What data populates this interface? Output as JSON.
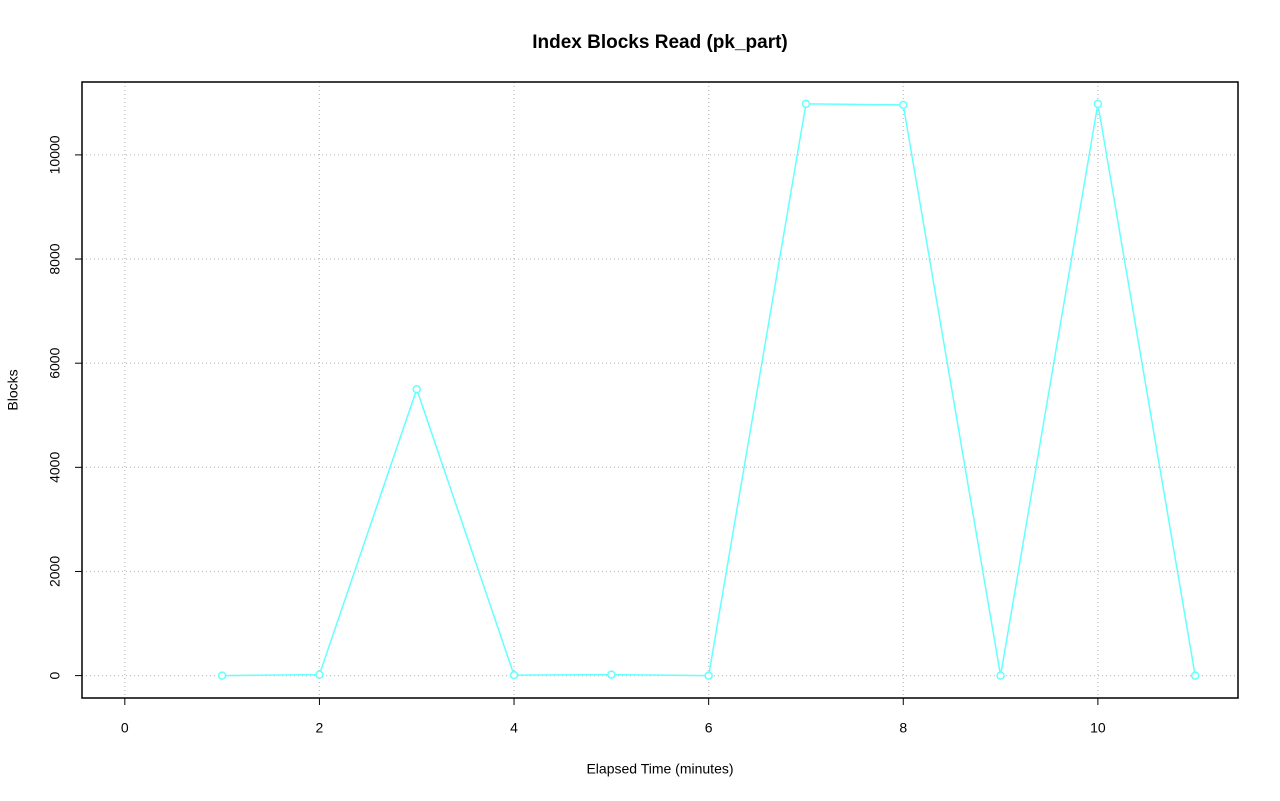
{
  "chart_data": {
    "type": "line",
    "title": "Index Blocks Read (pk_part)",
    "x_label": "Elapsed Time (minutes)",
    "y_label": "Blocks",
    "x": [
      1,
      2,
      3,
      4,
      5,
      6,
      7,
      8,
      9,
      10,
      11
    ],
    "series": [
      {
        "name": "pk_part",
        "color": "#66ffff",
        "values": [
          0,
          20,
          5500,
          10,
          20,
          0,
          10980,
          10960,
          0,
          10980,
          0
        ]
      }
    ],
    "xlim": [
      -0.44,
      11.44
    ],
    "xticks": [
      0,
      2,
      4,
      6,
      8,
      10
    ],
    "ylim": [
      -430,
      11400
    ],
    "yticks": [
      0,
      2000,
      4000,
      6000,
      8000,
      10000
    ],
    "grid": true
  }
}
